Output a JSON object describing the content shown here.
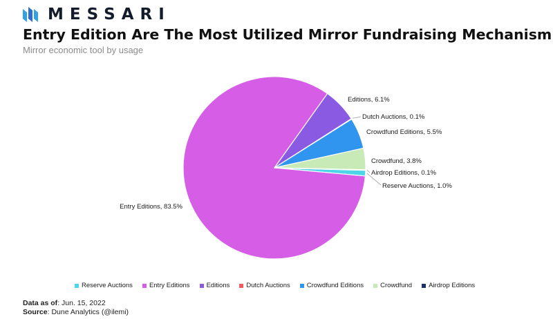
{
  "brand": {
    "name": "MESSARI"
  },
  "title": "Entry Edition Are The Most Utilized Mirror Fundraising Mechanism",
  "subtitle": "Mirror economic tool by usage",
  "chart_data": {
    "type": "pie",
    "title": "Entry Edition Are The Most Utilized Mirror Fundraising Mechanism",
    "subtitle": "Mirror economic tool by usage",
    "slices": [
      {
        "name": "Reserve Auctions",
        "value": 1.0,
        "label": "Reserve Auctions, 1.0%",
        "color": "#4dd6e8"
      },
      {
        "name": "Entry Editions",
        "value": 83.5,
        "label": "Entry Editions, 83.5%",
        "color": "#d65ee6"
      },
      {
        "name": "Editions",
        "value": 6.1,
        "label": "Editions, 6.1%",
        "color": "#8a5be2"
      },
      {
        "name": "Dutch Auctions",
        "value": 0.1,
        "label": "Dutch Auctions, 0.1%",
        "color": "#f25c5c"
      },
      {
        "name": "Crowdfund Editions",
        "value": 5.5,
        "label": "Crowdfund Editions, 5.5%",
        "color": "#2f95ef"
      },
      {
        "name": "Crowdfund",
        "value": 3.8,
        "label": "Crowdfund, 3.8%",
        "color": "#c8eab6"
      },
      {
        "name": "Airdrop Editions",
        "value": 0.1,
        "label": "Airdrop Editions, 0.1%",
        "color": "#1f3166"
      }
    ],
    "legend_position": "bottom"
  },
  "footer": {
    "date_label": "Data as of",
    "date_value": ": Jun. 15, 2022",
    "source_label": "Source",
    "source_value": ": Dune Analytics (@ilemi)"
  }
}
